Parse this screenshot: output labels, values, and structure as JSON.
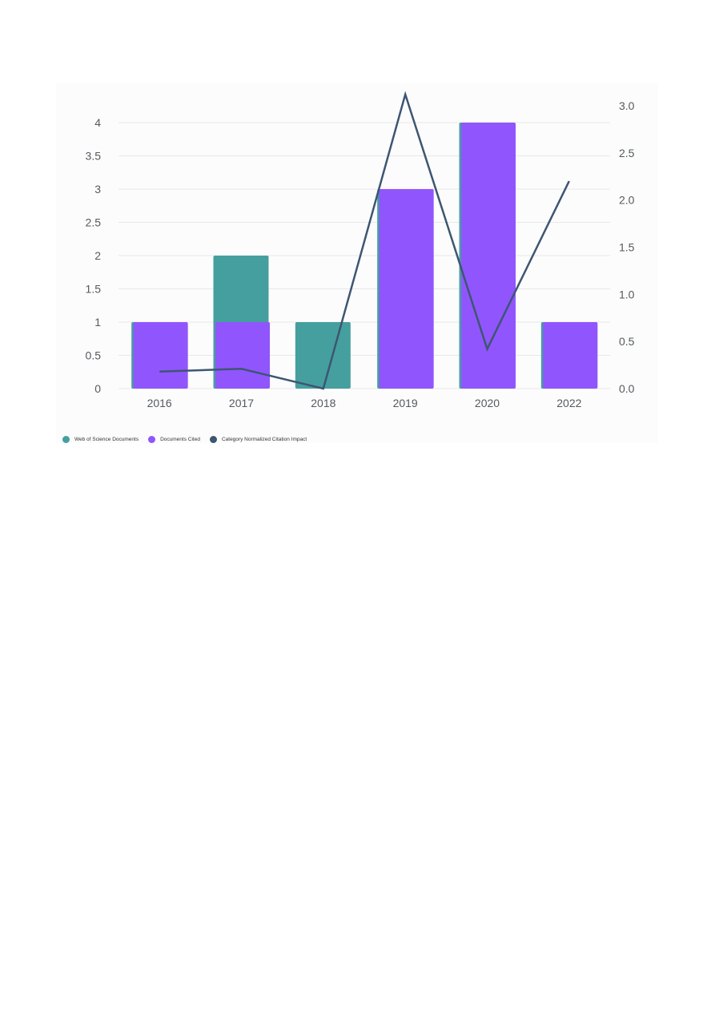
{
  "colors": {
    "web_of_science": "#459f9f",
    "documents_cited": "#9155fd",
    "cnci_line": "#3d5672",
    "grid": "#e8e8e8",
    "panel_bg": "#fcfcfc",
    "tick_text": "#555a60"
  },
  "legend": {
    "items": [
      {
        "label": "Web of Science Documents",
        "color": "#459f9f"
      },
      {
        "label": "Documents Cited",
        "color": "#9155fd"
      },
      {
        "label": "Category Normalized Citation Impact",
        "color": "#3d5672"
      }
    ]
  },
  "chart_data": {
    "type": "bar",
    "categories": [
      "2016",
      "2017",
      "2018",
      "2019",
      "2020",
      "2022"
    ],
    "series": [
      {
        "name": "Web of Science Documents",
        "type": "bar",
        "axis": "left",
        "values": [
          1,
          2,
          1,
          3,
          4,
          1
        ]
      },
      {
        "name": "Documents Cited",
        "type": "bar",
        "axis": "left",
        "values": [
          1,
          1,
          0,
          3,
          4,
          1
        ]
      },
      {
        "name": "Category Normalized Citation Impact",
        "type": "line",
        "axis": "right",
        "values": [
          0.18,
          0.21,
          0.0,
          3.12,
          0.42,
          2.2
        ]
      }
    ],
    "y_left": {
      "range": [
        0,
        4.5
      ],
      "ticks": [
        "0",
        "0.5",
        "1",
        "1.5",
        "2",
        "2.5",
        "3",
        "3.5",
        "4"
      ]
    },
    "y_right": {
      "range": [
        0,
        3.2
      ],
      "ticks": [
        "0.0",
        "0.5",
        "1.0",
        "1.5",
        "2.0",
        "2.5",
        "3.0"
      ]
    },
    "grid": true,
    "legend_position": "bottom-left"
  }
}
